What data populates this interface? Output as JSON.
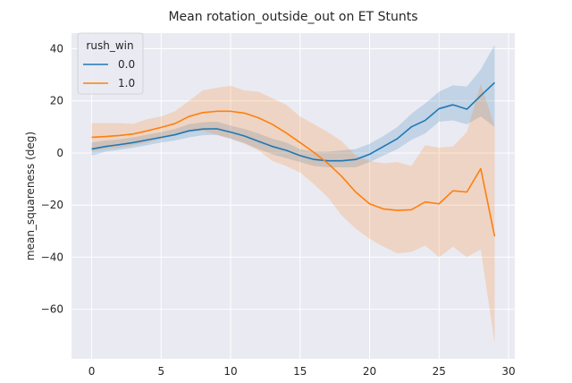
{
  "chart_data": {
    "type": "line",
    "title": "Mean rotation_outside_out on ET Stunts",
    "xlabel": "",
    "ylabel": "mean_squareness (deg)",
    "xlim": [
      -1.45,
      30.45
    ],
    "ylim": [
      -79,
      46
    ],
    "xticks": [
      0,
      5,
      10,
      15,
      20,
      25,
      30
    ],
    "yticks": [
      40,
      20,
      0,
      -20,
      -40,
      -60
    ],
    "grid": true,
    "legend": {
      "title": "rush_win",
      "placement": "top-left"
    },
    "x": [
      0,
      1,
      2,
      3,
      4,
      5,
      6,
      7,
      8,
      9,
      10,
      11,
      12,
      13,
      14,
      15,
      16,
      17,
      18,
      19,
      20,
      21,
      22,
      23,
      24,
      25,
      26,
      27,
      28,
      29
    ],
    "series": [
      {
        "name": "0.0",
        "color": "#1f77b4",
        "values": [
          1.5,
          2.5,
          3.2,
          4.0,
          5.0,
          6.0,
          7.0,
          8.5,
          9.2,
          9.3,
          8.0,
          6.5,
          4.5,
          2.5,
          1.0,
          -1.0,
          -2.5,
          -3.0,
          -3.0,
          -2.5,
          -0.5,
          2.5,
          5.5,
          10.0,
          12.5,
          17.0,
          18.5,
          16.8,
          22.0,
          27.0
        ],
        "lower": [
          -1.0,
          0.5,
          1.2,
          2.0,
          3.0,
          4.0,
          4.8,
          6.0,
          6.8,
          7.0,
          5.5,
          3.8,
          1.5,
          -0.5,
          -2.0,
          -3.5,
          -5.0,
          -5.5,
          -5.5,
          -5.5,
          -3.5,
          -1.0,
          1.5,
          5.0,
          7.5,
          12.0,
          12.5,
          11.0,
          14.0,
          10.0
        ],
        "upper": [
          4.0,
          4.8,
          5.2,
          6.0,
          7.0,
          8.0,
          9.2,
          11.0,
          11.8,
          12.0,
          10.5,
          9.2,
          7.5,
          5.5,
          4.0,
          1.5,
          0.5,
          0.5,
          1.0,
          1.5,
          3.5,
          6.5,
          10.0,
          15.0,
          19.0,
          23.5,
          26.0,
          25.5,
          32.0,
          41.5
        ]
      },
      {
        "name": "1.0",
        "color": "#ff7f0e",
        "values": [
          6.0,
          6.3,
          6.7,
          7.3,
          8.5,
          9.8,
          11.3,
          14.0,
          15.5,
          16.0,
          16.0,
          15.3,
          13.5,
          11.0,
          7.7,
          4.0,
          0.2,
          -4.0,
          -9.0,
          -15.0,
          -19.5,
          -21.5,
          -22.0,
          -21.8,
          -18.8,
          -19.5,
          -14.5,
          -15.0,
          -6.0,
          -32.0
        ],
        "lower": [
          0.5,
          1.5,
          2.0,
          3.0,
          4.0,
          5.5,
          7.0,
          8.0,
          8.5,
          7.0,
          5.5,
          3.5,
          1.0,
          -3.0,
          -5.0,
          -7.5,
          -12.0,
          -17.0,
          -24.0,
          -29.0,
          -33.0,
          -36.0,
          -38.5,
          -38.0,
          -35.5,
          -40.0,
          -36.0,
          -40.0,
          -37.0,
          -73.0
        ],
        "upper": [
          11.5,
          11.5,
          11.5,
          11.2,
          13.0,
          14.0,
          16.0,
          20.0,
          24.0,
          25.0,
          25.8,
          24.0,
          23.5,
          21.0,
          18.5,
          14.0,
          11.0,
          8.0,
          4.5,
          -1.0,
          -3.0,
          -4.0,
          -3.5,
          -5.0,
          3.0,
          2.0,
          2.5,
          8.0,
          26.5,
          10.0
        ]
      }
    ]
  }
}
